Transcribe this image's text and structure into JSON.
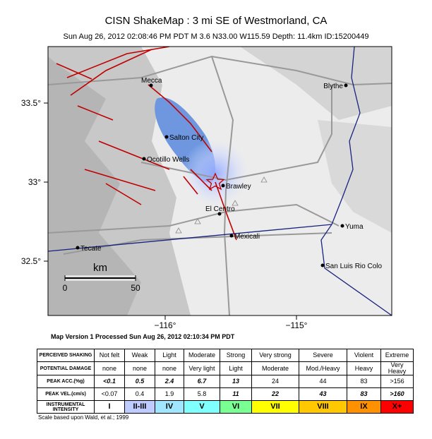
{
  "header": {
    "title": "CISN ShakeMap : 3 mi SE of Westmorland, CA",
    "subtitle": "Sun Aug 26, 2012 02:08:46 PM PDT   M 3.6   N33.00 W115.59   Depth: 11.4km   ID:15200449"
  },
  "map": {
    "lat_labels": [
      "33.5°",
      "33°",
      "32.5°"
    ],
    "lon_labels": [
      "−116°",
      "−115°"
    ],
    "cities": [
      "Mecca",
      "Blythe",
      "Salton City",
      "Ocotillo Wells",
      "Brawley",
      "El Centro",
      "Yuma",
      "Mexicali",
      "Tecate",
      "San Luis Rio Colo"
    ],
    "scale": {
      "unit": "km",
      "labels": [
        "0",
        "50"
      ]
    },
    "version": "Map Version 1 Processed Sun Aug 26, 2012 02:10:34 PM PDT"
  },
  "legend": {
    "rows": [
      {
        "header": "PERCEIVED SHAKING",
        "cells": [
          "Not felt",
          "Weak",
          "Light",
          "Moderate",
          "Strong",
          "Very strong",
          "Severe",
          "Violent",
          "Extreme"
        ]
      },
      {
        "header": "POTENTIAL DAMAGE",
        "cells": [
          "none",
          "none",
          "none",
          "Very light",
          "Light",
          "Moderate",
          "Mod./Heavy",
          "Heavy",
          "Very Heavy"
        ]
      },
      {
        "header": "PEAK ACC.(%g)",
        "cells": [
          "<0.1",
          "0.5",
          "2.4",
          "6.7",
          "13",
          "24",
          "44",
          "83",
          ">156"
        ]
      },
      {
        "header": "PEAK VEL.(cm/s)",
        "cells": [
          "<0.07",
          "0.4",
          "1.9",
          "5.8",
          "11",
          "22",
          "43",
          "83",
          ">160"
        ]
      },
      {
        "header": "INSTRUMENTAL INTENSITY",
        "cells": [
          "I",
          "II-III",
          "IV",
          "V",
          "VI",
          "VII",
          "VIII",
          "IX",
          "X+"
        ]
      }
    ],
    "colors": [
      "#ffffff",
      "#bfccff",
      "#a0e6ff",
      "#80ffff",
      "#7aff93",
      "#ffff00",
      "#ffc800",
      "#ff9100",
      "#ff0000"
    ],
    "note": "Scale based upon Wald, et al.; 1999"
  }
}
